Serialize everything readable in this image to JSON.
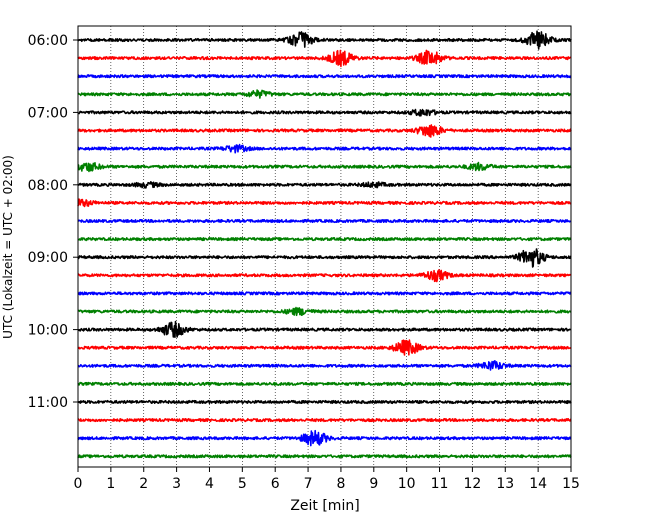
{
  "chart_data": {
    "type": "line",
    "title": "",
    "xlabel": "Zeit  [min]",
    "ylabel": "UTC (Lokalzeit = UTC + 02:00)",
    "xlim": [
      0,
      15
    ],
    "x_ticks": [
      "0",
      "1",
      "2",
      "3",
      "4",
      "5",
      "6",
      "7",
      "8",
      "9",
      "10",
      "11",
      "12",
      "13",
      "14",
      "15"
    ],
    "y_tick_labels": [
      "06:00",
      "07:00",
      "08:00",
      "09:00",
      "10:00",
      "11:00"
    ],
    "y_tick_trace_index": [
      0,
      4,
      8,
      12,
      16,
      20
    ],
    "grid": "vertical dotted at each minute",
    "trace_colors": [
      "#000000",
      "#ff0000",
      "#0000ff",
      "#008000"
    ],
    "trace_minutes": 15,
    "trace_count": 24,
    "traces": [
      {
        "start": "06:00",
        "color": "#000000",
        "events": [
          {
            "t": 6.8,
            "amp": 7
          },
          {
            "t": 14.0,
            "amp": 8
          }
        ]
      },
      {
        "start": "06:15",
        "color": "#ff0000",
        "events": [
          {
            "t": 8.0,
            "amp": 7
          },
          {
            "t": 10.7,
            "amp": 7
          }
        ]
      },
      {
        "start": "06:30",
        "color": "#0000ff",
        "events": []
      },
      {
        "start": "06:45",
        "color": "#008000",
        "events": [
          {
            "t": 5.5,
            "amp": 3
          }
        ]
      },
      {
        "start": "07:00",
        "color": "#000000",
        "events": [
          {
            "t": 10.5,
            "amp": 3
          }
        ]
      },
      {
        "start": "07:15",
        "color": "#ff0000",
        "events": [
          {
            "t": 10.7,
            "amp": 6
          }
        ]
      },
      {
        "start": "07:30",
        "color": "#0000ff",
        "events": [
          {
            "t": 4.8,
            "amp": 3
          }
        ]
      },
      {
        "start": "07:45",
        "color": "#008000",
        "events": [
          {
            "t": 0.3,
            "amp": 4
          },
          {
            "t": 12.2,
            "amp": 3
          }
        ]
      },
      {
        "start": "08:00",
        "color": "#000000",
        "events": [
          {
            "t": 2.1,
            "amp": 2
          },
          {
            "t": 9.0,
            "amp": 2
          }
        ]
      },
      {
        "start": "08:15",
        "color": "#ff0000",
        "events": [
          {
            "t": 0.1,
            "amp": 3
          }
        ]
      },
      {
        "start": "08:30",
        "color": "#0000ff",
        "events": []
      },
      {
        "start": "08:45",
        "color": "#008000",
        "events": []
      },
      {
        "start": "09:00",
        "color": "#000000",
        "events": [
          {
            "t": 13.8,
            "amp": 9
          }
        ]
      },
      {
        "start": "09:15",
        "color": "#ff0000",
        "events": [
          {
            "t": 10.9,
            "amp": 5
          }
        ]
      },
      {
        "start": "09:30",
        "color": "#0000ff",
        "events": []
      },
      {
        "start": "09:45",
        "color": "#008000",
        "events": [
          {
            "t": 6.7,
            "amp": 3
          }
        ]
      },
      {
        "start": "10:00",
        "color": "#000000",
        "events": [
          {
            "t": 2.9,
            "amp": 7
          }
        ]
      },
      {
        "start": "10:15",
        "color": "#ff0000",
        "events": [
          {
            "t": 10.0,
            "amp": 7
          }
        ]
      },
      {
        "start": "10:30",
        "color": "#0000ff",
        "events": [
          {
            "t": 12.6,
            "amp": 4
          }
        ]
      },
      {
        "start": "10:45",
        "color": "#008000",
        "events": []
      },
      {
        "start": "11:00",
        "color": "#000000",
        "events": []
      },
      {
        "start": "11:15",
        "color": "#ff0000",
        "events": []
      },
      {
        "start": "11:30",
        "color": "#0000ff",
        "events": [
          {
            "t": 7.2,
            "amp": 7
          }
        ]
      },
      {
        "start": "11:45",
        "color": "#008000",
        "events": []
      }
    ]
  }
}
